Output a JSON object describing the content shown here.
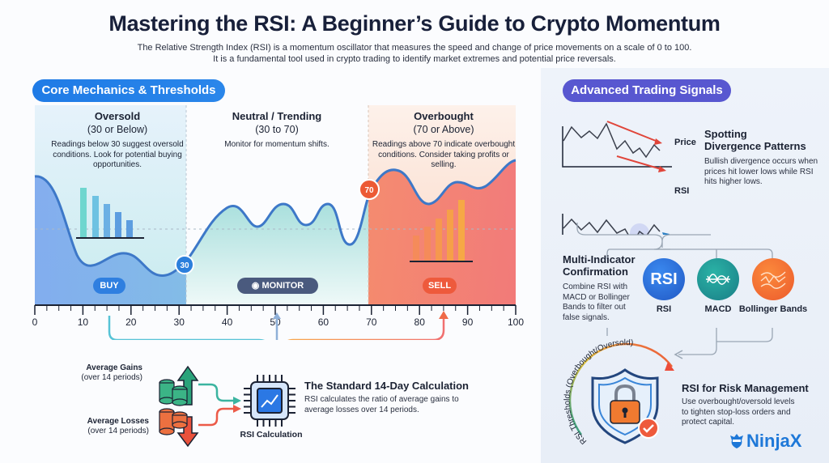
{
  "title": "Mastering the RSI: A Beginner’s Guide to Crypto Momentum",
  "subtitle": [
    "The Relative Strength Index (RSI) is a momentum oscillator that measures the speed and change of price movements on a scale of 0 to 100.",
    "It is a fundamental tool used in crypto trading to identify market extremes and potential price reversals."
  ],
  "left_section": {
    "pill": "Core Mechanics & Thresholds",
    "zones": [
      {
        "heading": "Oversold",
        "range": "(30 or Below)",
        "desc": "Readings below 30 suggest oversold conditions. Look for potential buying opportunities.",
        "action": "BUY",
        "color": "#2f7fe0"
      },
      {
        "heading": "Neutral / Trending",
        "range": "(30 to 70)",
        "desc": "Monitor for momentum shifts.",
        "action": "MONITOR",
        "color": "#4a5a7e"
      },
      {
        "heading": "Overbought",
        "range": "(70 or Above)",
        "desc": "Readings above 70 indicate overbought conditions. Consider taking profits or selling.",
        "action": "SELL",
        "color": "#ee5a3c"
      }
    ],
    "markers": [
      "30",
      "70"
    ],
    "axis_labels": [
      "0",
      "10",
      "20",
      "30",
      "40",
      "50",
      "60",
      "70",
      "80",
      "90",
      "100"
    ]
  },
  "calculation": {
    "gains_label": "Average Gains",
    "gains_sub": "(over 14 periods)",
    "losses_label": "Average Losses",
    "losses_sub": "(over 14 periods)",
    "chip_label": "RSI Calculation",
    "heading": "The Standard 14-Day Calculation",
    "desc": "RSI calculates the ratio of average gains to average losses over 14 periods."
  },
  "right_section": {
    "pill": "Advanced Trading Signals",
    "divergence": {
      "price_label": "Price",
      "rsi_label": "RSI",
      "heading": [
        "Spotting",
        "Divergence Patterns"
      ],
      "desc": "Bullish divergence occurs when prices hit lower lows while RSI hits higher lows."
    },
    "confirmation": {
      "heading": [
        "Multi-Indicator",
        "Confirmation"
      ],
      "desc": "Combine RSI with MACD or Bollinger Bands to filter out false signals.",
      "indicators": [
        {
          "label": "RSI",
          "icon_text": "RSI",
          "color": "#2a6fdc"
        },
        {
          "label": "MACD",
          "color": "#1f9e94"
        },
        {
          "label": "Bollinger Bands",
          "color": "#f36a33"
        }
      ]
    },
    "risk": {
      "arc_text": "RSI Thresholds (Overbought/Oversold)",
      "heading": "RSI for Risk Management",
      "desc": "Use overbought/oversold levels to tighten stop-loss orders and protect capital."
    }
  },
  "logo": "NinjaX"
}
